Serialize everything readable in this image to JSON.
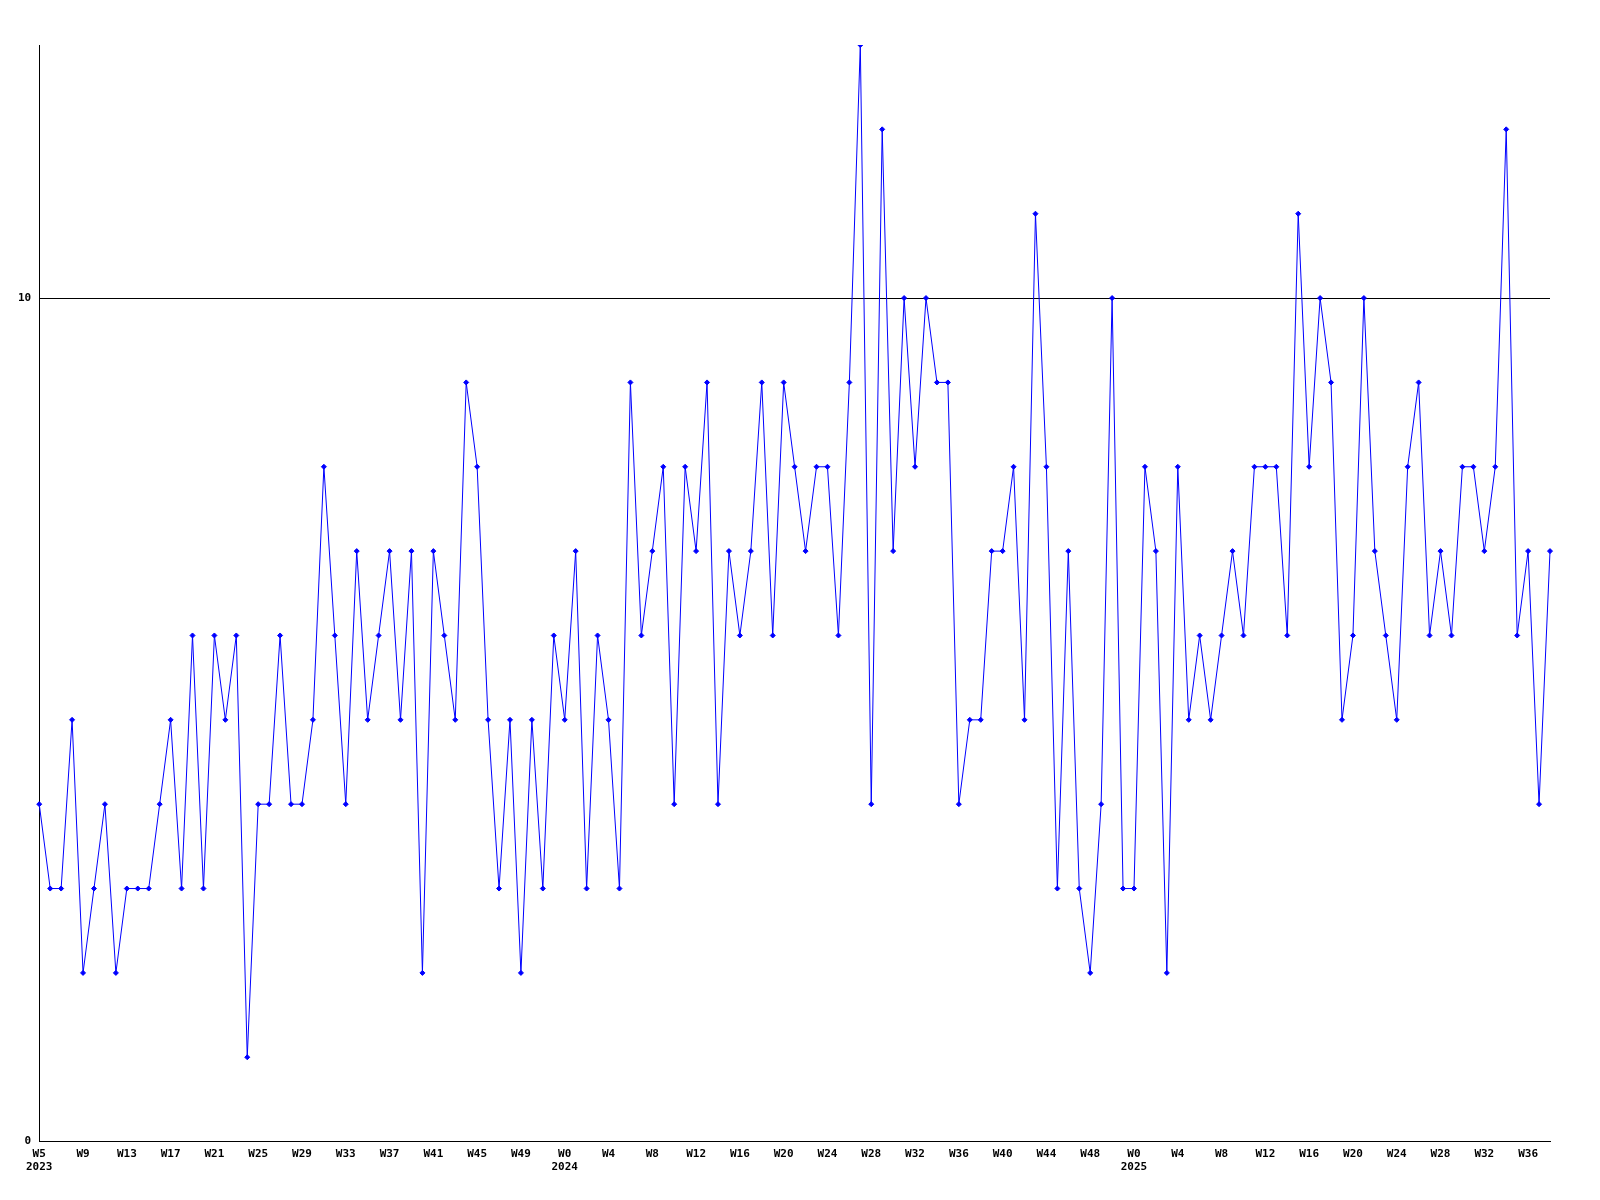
{
  "chart_data": {
    "type": "line",
    "categories": [
      "W5\n2023",
      null,
      null,
      null,
      "W9",
      null,
      null,
      null,
      "W13",
      null,
      null,
      null,
      "W17",
      null,
      null,
      null,
      "W21",
      null,
      null,
      null,
      "W25",
      null,
      null,
      null,
      "W29",
      null,
      null,
      null,
      "W33",
      null,
      null,
      null,
      "W37",
      null,
      null,
      null,
      "W41",
      null,
      null,
      null,
      "W45",
      null,
      null,
      null,
      "W49",
      null,
      null,
      null,
      "W0\n2024",
      null,
      null,
      null,
      "W4",
      null,
      null,
      null,
      "W8",
      null,
      null,
      null,
      "W12",
      null,
      null,
      null,
      "W16",
      null,
      null,
      null,
      "W20",
      null,
      null,
      null,
      "W24",
      null,
      null,
      null,
      "W28",
      null,
      null,
      null,
      "W32",
      null,
      null,
      null,
      "W36",
      null,
      null,
      null,
      "W40",
      null,
      null,
      null,
      "W44",
      null,
      null,
      null,
      "W48",
      null,
      null,
      null,
      "W0\n2025",
      null,
      null,
      null,
      "W4",
      null,
      null,
      null,
      "W8",
      null,
      null,
      null,
      "W12",
      null,
      null,
      null,
      "W16",
      null,
      null,
      null,
      "W20",
      null,
      null,
      null,
      "W24",
      null,
      null,
      null,
      "W28",
      null,
      null,
      null,
      "W32",
      null,
      null,
      null,
      "W36",
      null,
      null
    ],
    "values": [
      4,
      3,
      3,
      5,
      2,
      3,
      4,
      2,
      3,
      3,
      3,
      4,
      5,
      3,
      6,
      3,
      6,
      5,
      6,
      1,
      4,
      4,
      6,
      4,
      4,
      5,
      8,
      6,
      4,
      7,
      5,
      6,
      7,
      5,
      7,
      2,
      7,
      6,
      5,
      9,
      8,
      5,
      3,
      5,
      2,
      5,
      3,
      6,
      5,
      7,
      3,
      6,
      5,
      3,
      9,
      6,
      7,
      8,
      4,
      8,
      7,
      9,
      4,
      7,
      6,
      7,
      9,
      6,
      9,
      8,
      7,
      8,
      8,
      6,
      9,
      13,
      4,
      12,
      7,
      10,
      8,
      10,
      9,
      9,
      4,
      5,
      5,
      7,
      7,
      8,
      5,
      11,
      8,
      3,
      7,
      3,
      2,
      4,
      10,
      3,
      3,
      8,
      7,
      2,
      8,
      5,
      6,
      5,
      6,
      7,
      6,
      8,
      8,
      8,
      6,
      11,
      8,
      10,
      9,
      5,
      6,
      10,
      7,
      6,
      5,
      8,
      9,
      6,
      7,
      6,
      8,
      8,
      7,
      8,
      12,
      6,
      7,
      4,
      7
    ],
    "color": "#0000ff",
    "ylim": [
      0,
      13
    ],
    "yticks": [
      0,
      10
    ],
    "grid": "y",
    "marker": "diamond"
  }
}
